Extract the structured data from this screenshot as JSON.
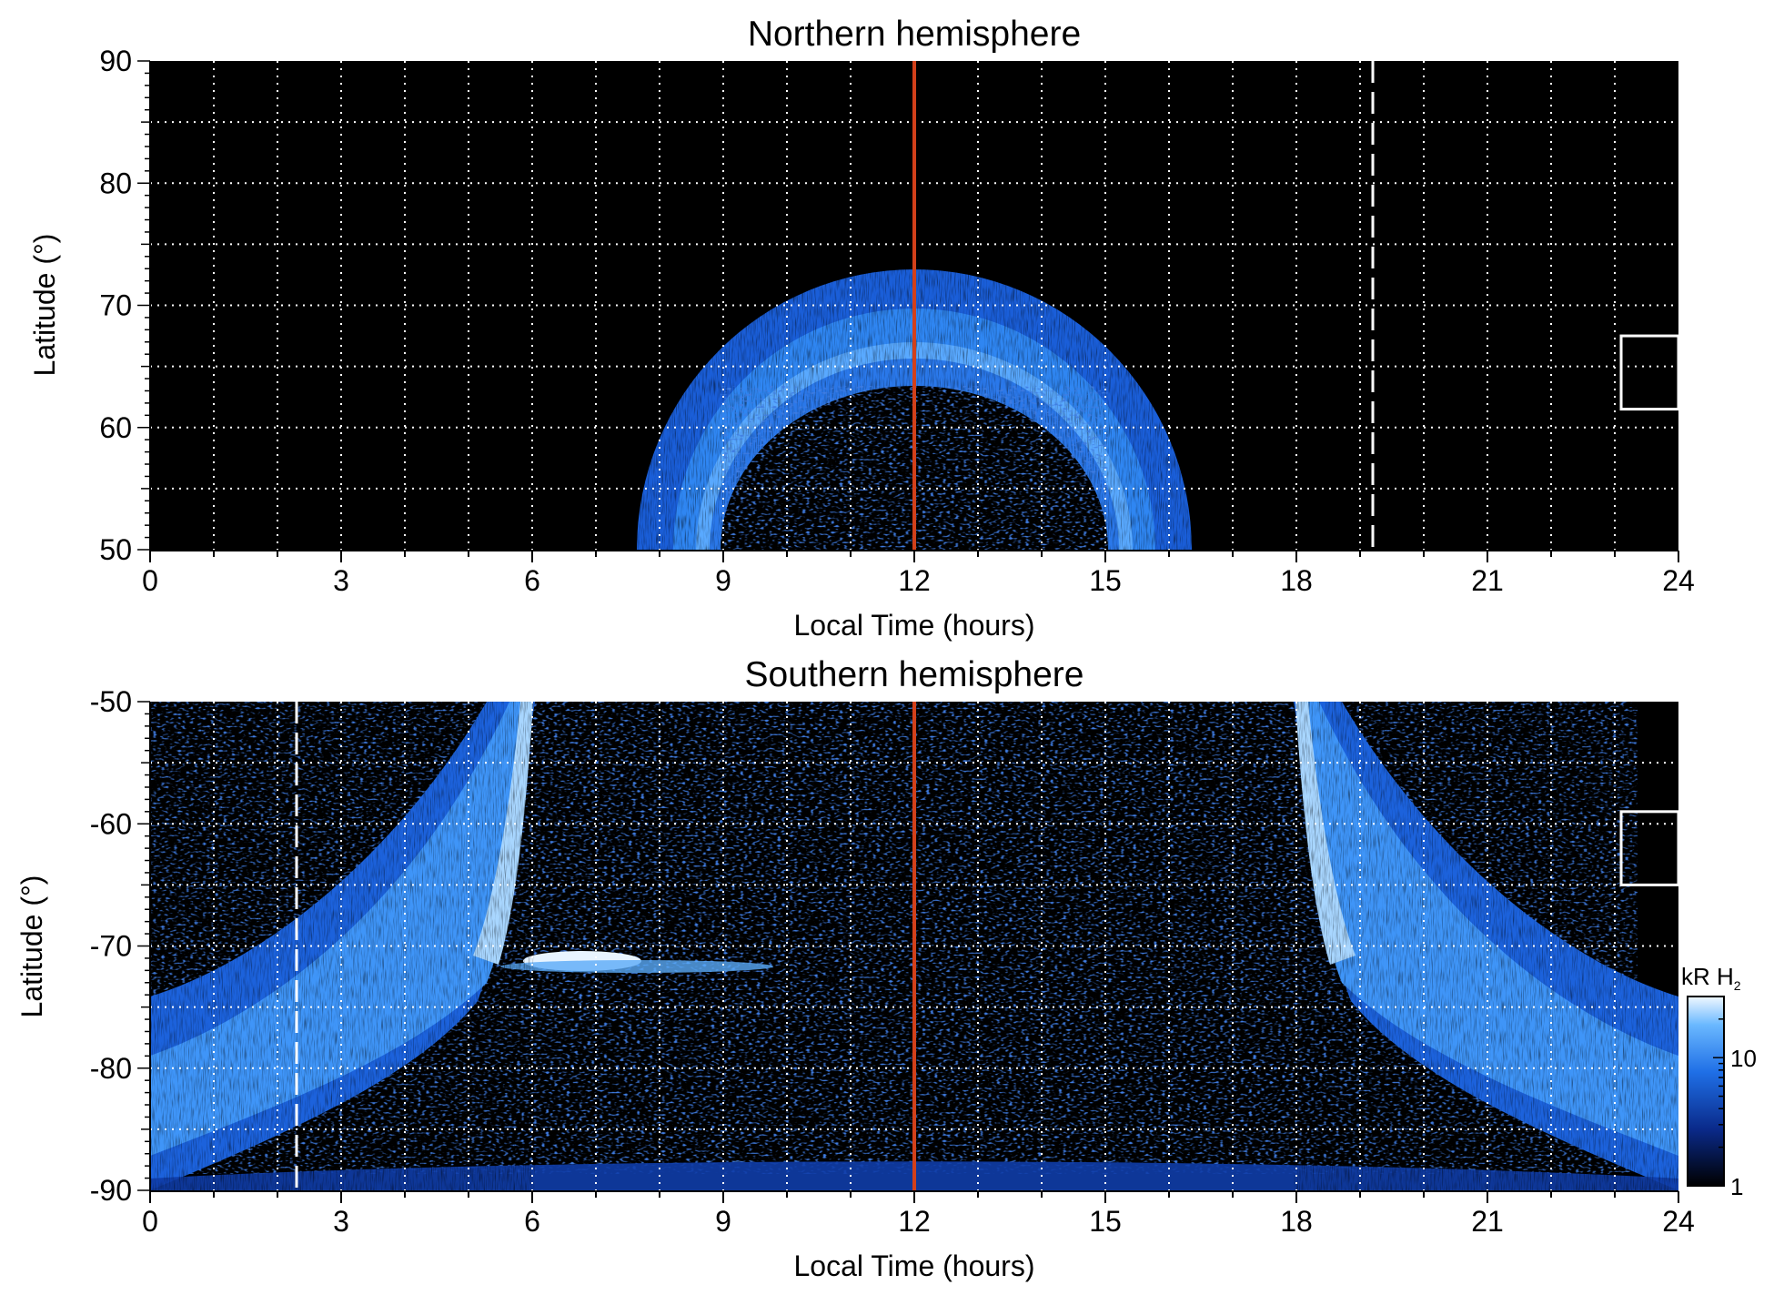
{
  "chart_data": [
    {
      "type": "heatmap",
      "title": "Northern hemisphere",
      "xlabel": "Local Time (hours)",
      "ylabel": "Latitude (°)",
      "xlim": [
        0,
        24
      ],
      "ylim": [
        50,
        90
      ],
      "xticks": [
        "0",
        "3",
        "6",
        "9",
        "12",
        "15",
        "18",
        "21",
        "24"
      ],
      "yticks": [
        "50",
        "60",
        "70",
        "80",
        "90"
      ],
      "grid": true,
      "reference_lines": [
        {
          "x": 12,
          "style": "solid",
          "color": "#d2401a"
        },
        {
          "x": 19.2,
          "style": "dashed",
          "color": "#ffffff"
        }
      ],
      "highlight_box": {
        "x": [
          23.1,
          24
        ],
        "y": [
          61.5,
          67.5
        ]
      },
      "emission_features": [
        {
          "feature": "main oval",
          "local_time_range": [
            7.7,
            16.5
          ],
          "peak_latitude_at_noon": 64,
          "poleward_edge_at_noon": 73
        }
      ]
    },
    {
      "type": "heatmap",
      "title": "Southern hemisphere",
      "xlabel": "Local Time (hours)",
      "ylabel": "Latitude (°)",
      "xlim": [
        0,
        24
      ],
      "ylim": [
        -90,
        -50
      ],
      "xticks": [
        "0",
        "3",
        "6",
        "9",
        "12",
        "15",
        "18",
        "21",
        "24"
      ],
      "yticks": [
        "-90",
        "-80",
        "-70",
        "-60",
        "-50"
      ],
      "grid": true,
      "reference_lines": [
        {
          "x": 12,
          "style": "solid",
          "color": "#d2401a"
        },
        {
          "x": 2.3,
          "style": "dashed",
          "color": "#ffffff"
        }
      ],
      "highlight_box": {
        "x": [
          23.1,
          24
        ],
        "y": [
          -65,
          -59
        ]
      },
      "emission_features": [
        {
          "feature": "dawn oval",
          "local_time_range": [
            0,
            6
          ]
        },
        {
          "feature": "dusk oval",
          "local_time_range": [
            18,
            24
          ]
        },
        {
          "feature": "bright spot",
          "local_time": 7,
          "latitude": -71
        }
      ],
      "colorbar": {
        "label": "kR H₂",
        "scale": "log",
        "tick_labels": [
          "1",
          "10"
        ],
        "colors": [
          "#000000",
          "#0a2a8a",
          "#1f6fe6",
          "#6ab8ff",
          "#f0f8ff"
        ]
      }
    }
  ]
}
